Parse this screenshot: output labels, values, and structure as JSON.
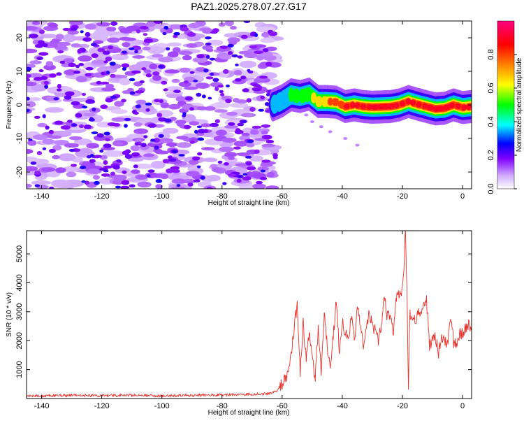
{
  "title": "PAZ1.2025.278.07.27.G17",
  "chart_data": [
    {
      "type": "heatmap",
      "name": "spectrogram",
      "xlabel": "Height of straight line (km)",
      "ylabel": "Frequency (Hz)",
      "xlim": [
        -145,
        3
      ],
      "ylim": [
        -25,
        25
      ],
      "xticks": [
        -140,
        -120,
        -100,
        -80,
        -60,
        -40,
        -20,
        0
      ],
      "yticks": [
        -20,
        -10,
        0,
        10,
        20
      ],
      "colorbar": {
        "label": "Normalized spectral amplitude",
        "range": [
          0,
          1
        ],
        "ticks": [
          0.0,
          0.2,
          0.4,
          0.6,
          0.8
        ],
        "colors": [
          "#ffffff",
          "#a060ff",
          "#0000ff",
          "#00ffff",
          "#00ff00",
          "#ffff00",
          "#ff8000",
          "#ff0000",
          "#ff0080"
        ]
      },
      "noise_region_x": [
        -145,
        -62
      ],
      "signal_track": {
        "x": [
          -63,
          -60,
          -57,
          -54,
          -51,
          -48,
          -45,
          -42,
          -39,
          -36,
          -33,
          -30,
          -27,
          -24,
          -21,
          -18,
          -15,
          -12,
          -9,
          -6,
          -3,
          0,
          3
        ],
        "freq": [
          0,
          1.2,
          3.0,
          2.5,
          3.2,
          1.0,
          1.0,
          0.8,
          -0.5,
          0.0,
          -0.5,
          -0.7,
          -0.6,
          -0.5,
          0.0,
          1.0,
          0.2,
          -0.5,
          -1.2,
          -1.0,
          0.0,
          -0.8,
          -0.5
        ],
        "amplitude": [
          0.25,
          0.35,
          0.4,
          0.45,
          0.5,
          0.55,
          0.65,
          0.75,
          0.8,
          0.8,
          0.8,
          0.82,
          0.85,
          0.85,
          0.82,
          0.8,
          0.8,
          0.82,
          0.85,
          0.85,
          0.8,
          0.8,
          0.78
        ]
      }
    },
    {
      "type": "line",
      "name": "snr",
      "xlabel": "Height of straight line (km)",
      "ylabel": "SNR (10 * v/v)",
      "xlim": [
        -145,
        3
      ],
      "ylim": [
        0,
        5800
      ],
      "xticks": [
        -140,
        -120,
        -100,
        -80,
        -60,
        -40,
        -20,
        0
      ],
      "yticks": [
        1000,
        2000,
        3000,
        4000,
        5000
      ],
      "color": "#e8302a",
      "series": [
        {
          "name": "SNR",
          "x": [
            -145,
            -140,
            -130,
            -120,
            -110,
            -100,
            -90,
            -80,
            -70,
            -64,
            -62,
            -60,
            -58,
            -56,
            -55,
            -54,
            -53,
            -52,
            -51,
            -50,
            -49,
            -48,
            -47,
            -46,
            -45,
            -44,
            -43,
            -42,
            -41,
            -40,
            -39,
            -38,
            -37,
            -36,
            -35,
            -34,
            -33,
            -32,
            -31,
            -30,
            -29,
            -28,
            -27,
            -26,
            -25,
            -24,
            -23,
            -22,
            -21,
            -20,
            -19.5,
            -19,
            -18.5,
            -18,
            -17.5,
            -17,
            -16,
            -15,
            -14,
            -13,
            -12,
            -11,
            -10,
            -9,
            -8,
            -7,
            -6,
            -5,
            -4,
            -3,
            -2,
            -1,
            0,
            1,
            2,
            3
          ],
          "values": [
            80,
            90,
            110,
            100,
            120,
            90,
            110,
            130,
            150,
            180,
            250,
            500,
            800,
            2400,
            3300,
            900,
            2700,
            1300,
            2200,
            1500,
            700,
            2500,
            900,
            3000,
            1800,
            1200,
            2200,
            3300,
            1700,
            2700,
            2300,
            1900,
            2800,
            2000,
            3200,
            2500,
            1800,
            2400,
            3000,
            2500,
            2300,
            2000,
            2600,
            3500,
            2800,
            3000,
            2200,
            3500,
            3600,
            3800,
            4600,
            5800,
            3700,
            300,
            3000,
            2800,
            2700,
            2900,
            3000,
            3300,
            3400,
            1800,
            2000,
            2100,
            1600,
            2200,
            2000,
            1900,
            2800,
            1950,
            1900,
            2200,
            2300,
            2400,
            2500,
            2350
          ]
        }
      ]
    }
  ]
}
